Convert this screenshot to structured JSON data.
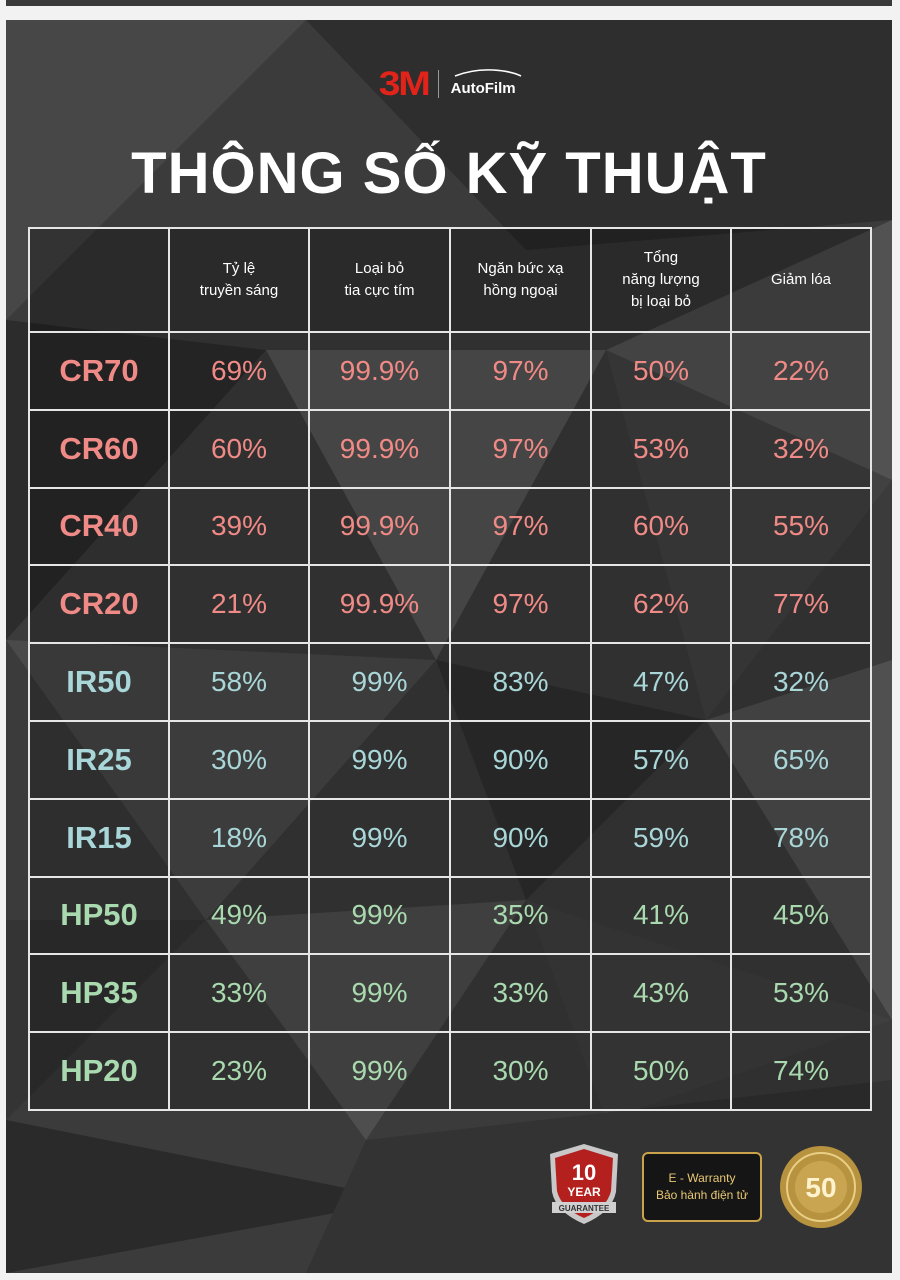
{
  "brand": {
    "logo_3m": "3M",
    "logo_product": "AutoFilm"
  },
  "title": "THÔNG SỐ KỸ THUẬT",
  "table": {
    "headers": [
      [
        "Tỷ lệ",
        "truyền sáng"
      ],
      [
        "Loại bỏ",
        "tia cực tím"
      ],
      [
        "Ngăn bức xạ",
        "hồng ngoại"
      ],
      [
        "Tổng",
        "năng lượng",
        "bị loại bỏ"
      ],
      [
        "Giảm lóa"
      ]
    ],
    "rows": [
      {
        "model": "CR70",
        "group": "cr",
        "values": [
          "69%",
          "99.9%",
          "97%",
          "50%",
          "22%"
        ]
      },
      {
        "model": "CR60",
        "group": "cr",
        "values": [
          "60%",
          "99.9%",
          "97%",
          "53%",
          "32%"
        ]
      },
      {
        "model": "CR40",
        "group": "cr",
        "values": [
          "39%",
          "99.9%",
          "97%",
          "60%",
          "55%"
        ]
      },
      {
        "model": "CR20",
        "group": "cr",
        "values": [
          "21%",
          "99.9%",
          "97%",
          "62%",
          "77%"
        ]
      },
      {
        "model": "IR50",
        "group": "ir",
        "values": [
          "58%",
          "99%",
          "83%",
          "47%",
          "32%"
        ]
      },
      {
        "model": "IR25",
        "group": "ir",
        "values": [
          "30%",
          "99%",
          "90%",
          "57%",
          "65%"
        ]
      },
      {
        "model": "IR15",
        "group": "ir",
        "values": [
          "18%",
          "99%",
          "90%",
          "59%",
          "78%"
        ]
      },
      {
        "model": "HP50",
        "group": "hp",
        "values": [
          "49%",
          "99%",
          "35%",
          "41%",
          "45%"
        ]
      },
      {
        "model": "HP35",
        "group": "hp",
        "values": [
          "33%",
          "99%",
          "33%",
          "43%",
          "53%"
        ]
      },
      {
        "model": "HP20",
        "group": "hp",
        "values": [
          "23%",
          "99%",
          "30%",
          "50%",
          "74%"
        ]
      }
    ]
  },
  "badges": {
    "guarantee_number": "10",
    "guarantee_year": "YEAR",
    "guarantee_label": "GUARANTEE",
    "warranty_line1": "E - Warranty",
    "warranty_line2": "Bảo hành điện tử",
    "seal_number": "50"
  },
  "colors": {
    "cr": "#f08a86",
    "ir": "#a9d6d8",
    "hp": "#a9d9ae",
    "brand_red": "#e2231a",
    "gold": "#c9a24a"
  }
}
